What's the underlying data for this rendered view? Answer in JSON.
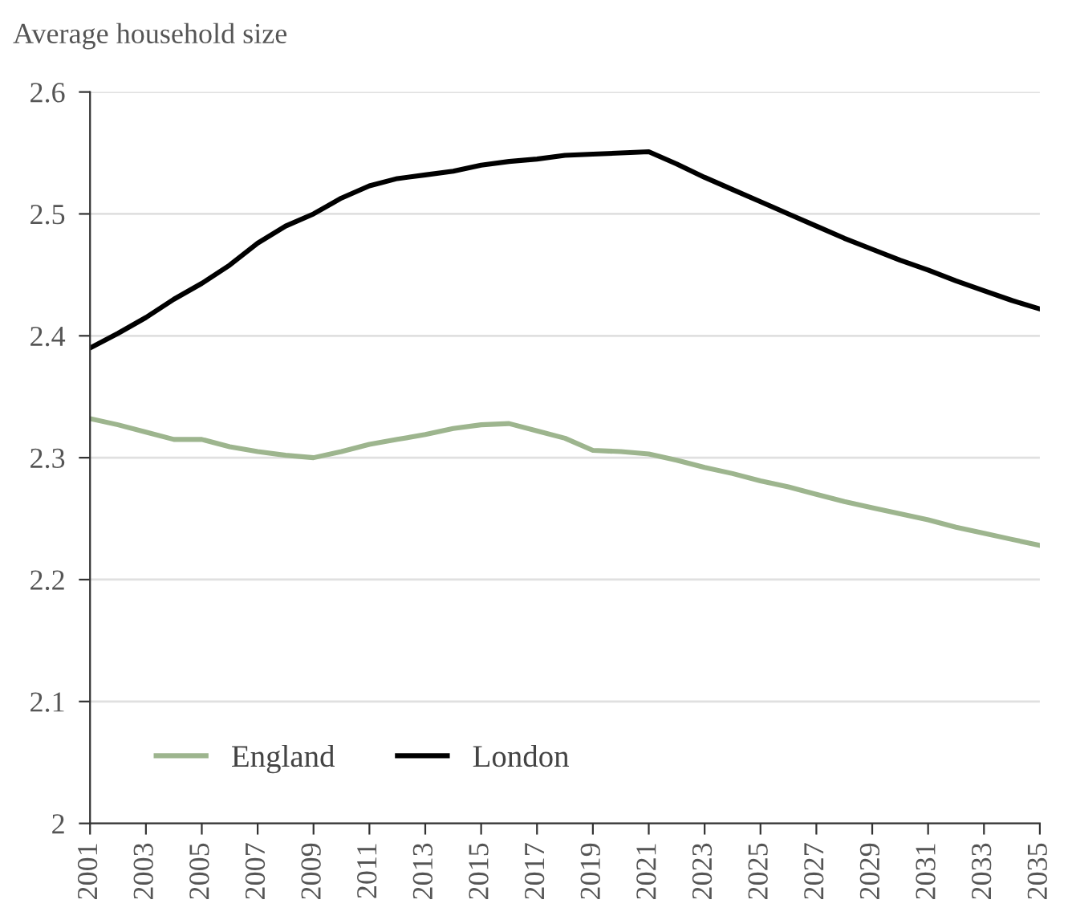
{
  "chart_data": {
    "type": "line",
    "title": "Average household size",
    "x": [
      2001,
      2002,
      2003,
      2004,
      2005,
      2006,
      2007,
      2008,
      2009,
      2010,
      2011,
      2012,
      2013,
      2014,
      2015,
      2016,
      2017,
      2018,
      2019,
      2020,
      2021,
      2022,
      2023,
      2024,
      2025,
      2026,
      2027,
      2028,
      2029,
      2030,
      2031,
      2032,
      2033,
      2034,
      2035
    ],
    "series": [
      {
        "name": "England",
        "color": "#9db58e",
        "values": [
          2.332,
          2.327,
          2.321,
          2.315,
          2.315,
          2.309,
          2.305,
          2.302,
          2.3,
          2.305,
          2.311,
          2.315,
          2.319,
          2.324,
          2.327,
          2.328,
          2.322,
          2.316,
          2.306,
          2.305,
          2.303,
          2.298,
          2.292,
          2.287,
          2.281,
          2.276,
          2.27,
          2.264,
          2.259,
          2.254,
          2.249,
          2.243,
          2.238,
          2.233,
          2.228
        ]
      },
      {
        "name": "London",
        "color": "#000000",
        "values": [
          2.39,
          2.402,
          2.415,
          2.43,
          2.443,
          2.458,
          2.476,
          2.49,
          2.5,
          2.513,
          2.523,
          2.529,
          2.532,
          2.535,
          2.54,
          2.543,
          2.545,
          2.548,
          2.549,
          2.55,
          2.551,
          2.541,
          2.53,
          2.52,
          2.51,
          2.5,
          2.49,
          2.48,
          2.471,
          2.462,
          2.454,
          2.445,
          2.437,
          2.429,
          2.422
        ]
      }
    ],
    "xlim": [
      2001,
      2035
    ],
    "xticks": [
      2001,
      2003,
      2005,
      2007,
      2009,
      2011,
      2013,
      2015,
      2017,
      2019,
      2021,
      2023,
      2025,
      2027,
      2029,
      2031,
      2033,
      2035
    ],
    "ylim": [
      2,
      2.6
    ],
    "yticks": [
      2,
      2.1,
      2.2,
      2.3,
      2.4,
      2.5,
      2.6
    ],
    "grid": "y",
    "legend": "bottom left",
    "marker": "none",
    "line_style": "solid"
  }
}
